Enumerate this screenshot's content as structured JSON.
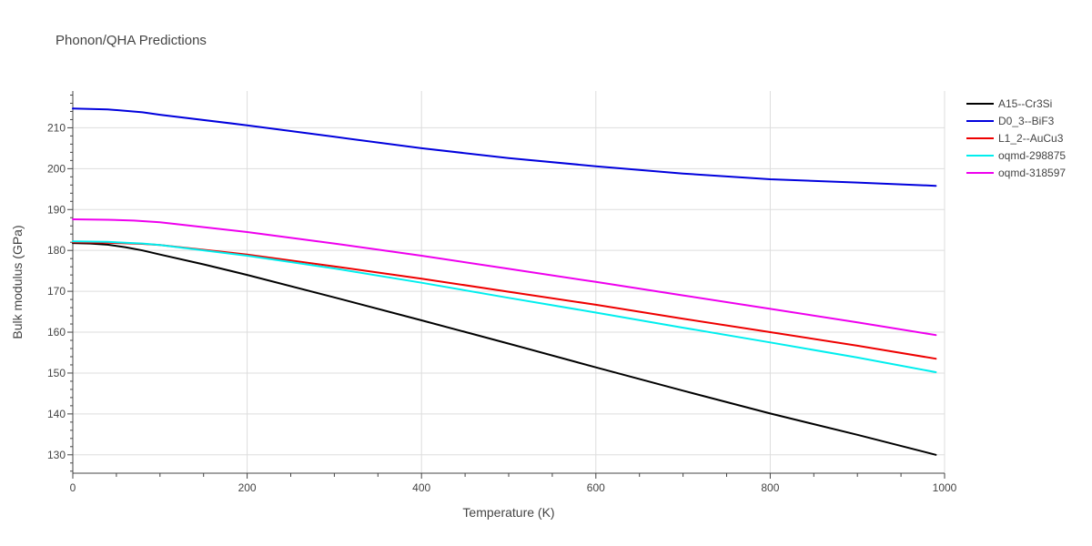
{
  "chart_data": {
    "type": "line",
    "title": "Phonon/QHA Predictions",
    "xlabel": "Temperature (K)",
    "ylabel": "Bulk modulus (GPa)",
    "xlim": [
      0,
      1000
    ],
    "ylim": [
      125.5,
      219
    ],
    "xticks": [
      0,
      200,
      400,
      600,
      800,
      1000
    ],
    "yticks": [
      130,
      140,
      150,
      160,
      170,
      180,
      190,
      200,
      210
    ],
    "grid": true,
    "legend_position": "top-right",
    "series": [
      {
        "name": "A15--Cr3Si",
        "color": "#000000",
        "x": [
          0,
          20,
          40,
          60,
          80,
          100,
          150,
          200,
          300,
          400,
          500,
          600,
          700,
          800,
          900,
          990
        ],
        "y": [
          181.8,
          181.7,
          181.4,
          180.8,
          180.0,
          179.0,
          176.6,
          174.0,
          168.5,
          162.9,
          157.2,
          151.4,
          145.7,
          140.1,
          134.9,
          130.0
        ]
      },
      {
        "name": "D0_3--BiF3",
        "color": "#0000dd",
        "x": [
          0,
          40,
          80,
          100,
          200,
          300,
          400,
          500,
          600,
          700,
          800,
          900,
          990
        ],
        "y": [
          214.7,
          214.5,
          213.8,
          213.2,
          210.6,
          207.8,
          205.0,
          202.6,
          200.6,
          198.8,
          197.4,
          196.6,
          195.8
        ]
      },
      {
        "name": "L1_2--AuCu3",
        "color": "#ee0000",
        "x": [
          0,
          40,
          80,
          100,
          200,
          300,
          400,
          500,
          600,
          700,
          800,
          900,
          990
        ],
        "y": [
          182.0,
          181.9,
          181.6,
          181.3,
          179.0,
          176.1,
          173.1,
          169.9,
          166.7,
          163.3,
          160.0,
          156.7,
          153.5
        ]
      },
      {
        "name": "oqmd-298875",
        "color": "#00eeee",
        "x": [
          0,
          40,
          80,
          100,
          200,
          300,
          400,
          500,
          600,
          700,
          800,
          900,
          990
        ],
        "y": [
          182.2,
          182.1,
          181.7,
          181.3,
          178.7,
          175.6,
          172.1,
          168.4,
          164.8,
          161.1,
          157.5,
          153.8,
          150.2
        ]
      },
      {
        "name": "oqmd-318597",
        "color": "#ee00ee",
        "x": [
          0,
          40,
          70,
          100,
          200,
          300,
          400,
          500,
          600,
          700,
          800,
          900,
          990
        ],
        "y": [
          187.6,
          187.5,
          187.3,
          186.9,
          184.5,
          181.7,
          178.7,
          175.5,
          172.3,
          169.0,
          165.7,
          162.4,
          159.3
        ]
      }
    ]
  }
}
